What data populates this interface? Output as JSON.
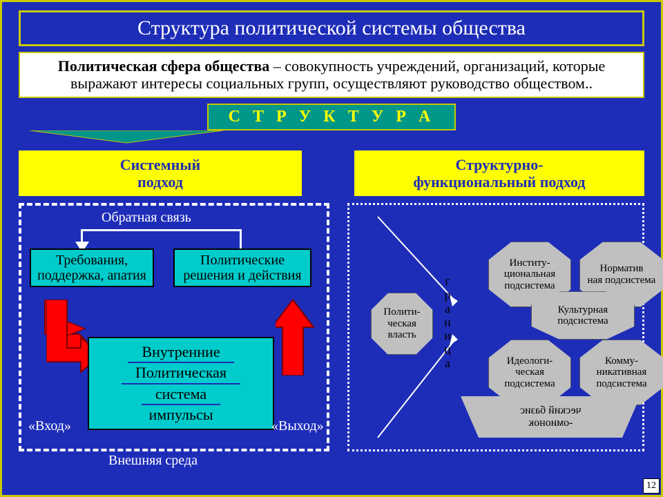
{
  "colors": {
    "bg": "#1e2db8",
    "accent_border": "#c9c900",
    "white": "#ffffff",
    "yellow": "#ffff00",
    "teal_dark": "#009688",
    "teal_light": "#00cccc",
    "red": "#ff0000",
    "gray": "#c0c0c0",
    "black": "#000000"
  },
  "title": "Структура политической системы общества",
  "definition_bold": "Политическая сфера общества",
  "definition_rest": " – совокупность учреждений, организаций, которые выражают интересы социальных групп, осуществляют руководство обществом..",
  "structure_label": "С Т Р У К Т У Р А",
  "approaches": {
    "left": "Системный\nподход",
    "right": "Структурно-\nфункциональный подход"
  },
  "left_diagram": {
    "feedback": "Обратная связь",
    "demands": "Требования, поддержка, апатия",
    "decisions": "Политические решения и действия",
    "system_lines": [
      "Внутренние",
      "Политическая",
      "система",
      "импульсы"
    ],
    "input": "«Вход»",
    "output": "«Выход»",
    "environment": "Внешняя среда",
    "arrow_color": "#ff0000"
  },
  "right_diagram": {
    "border_label": "граница",
    "hexes": {
      "power": "Полити-\nческая власть",
      "inst": "Институ-\nциональная подсистема",
      "norm": "Норматив\nная подсистема",
      "cult": "Культурная подсистема",
      "ideo": "Идеологи-\nческая подсистема",
      "comm": "Комму-\nникативная подсистема"
    },
    "bottom": "ческий базис\n-омионок"
  },
  "slide_number": "12"
}
